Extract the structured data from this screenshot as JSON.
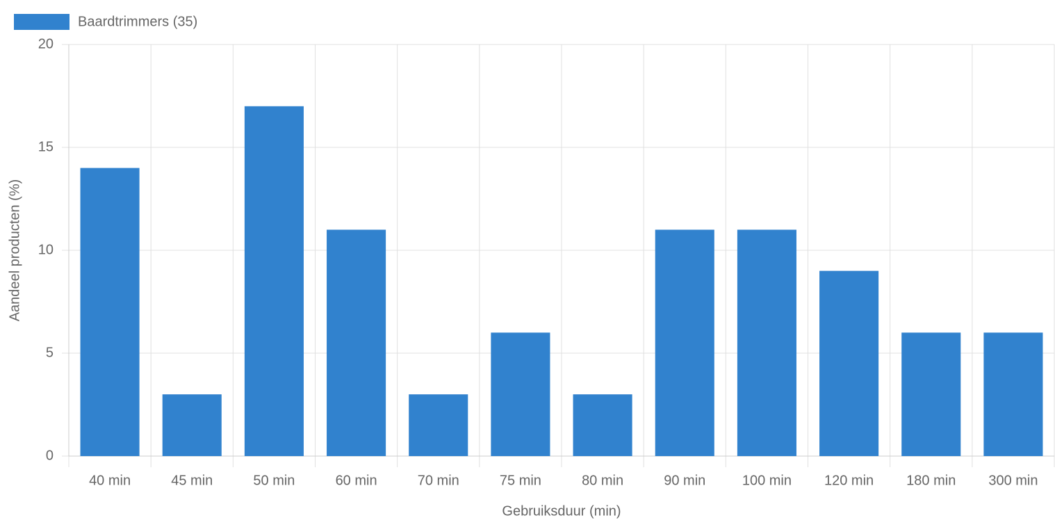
{
  "chart_data": {
    "type": "bar",
    "x_label": "Gebruiksduur (min)",
    "y_label": "Aandeel producten (%)",
    "categories": [
      "40 min",
      "45 min",
      "50 min",
      "60 min",
      "70 min",
      "75 min",
      "80 min",
      "90 min",
      "100 min",
      "120 min",
      "180 min",
      "300 min"
    ],
    "series": [
      {
        "name": "Baardtrimmers (35)",
        "color": "#3182ce",
        "values": [
          14,
          3,
          17,
          11,
          3,
          6,
          3,
          11,
          11,
          9,
          6,
          6
        ]
      }
    ],
    "ylim": [
      0,
      20
    ],
    "yticks": [
      0,
      5,
      10,
      15,
      20
    ],
    "grid": true,
    "legend": "top-left"
  }
}
